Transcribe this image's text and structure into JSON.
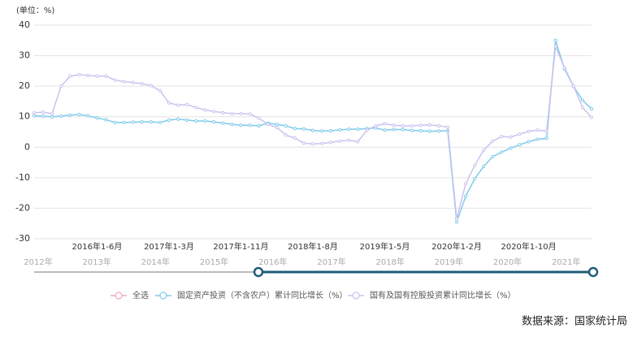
{
  "chart_data": {
    "type": "line",
    "y_label": "(单位：%)",
    "categories": [
      null,
      null,
      null,
      null,
      null,
      null,
      null,
      "2016年1-6月",
      null,
      null,
      null,
      null,
      null,
      null,
      null,
      "2017年1-3月",
      null,
      null,
      null,
      null,
      null,
      null,
      null,
      "2017年1-11月",
      null,
      null,
      null,
      null,
      null,
      null,
      null,
      "2018年1-8月",
      null,
      null,
      null,
      null,
      null,
      null,
      null,
      "2019年1-5月",
      null,
      null,
      null,
      null,
      null,
      null,
      null,
      "2020年1-2月",
      null,
      null,
      null,
      null,
      null,
      null,
      null,
      "2020年1-10月",
      null,
      null,
      null,
      null,
      null,
      null,
      null
    ],
    "series": [
      {
        "name": "固定资产投资（不含农户）累计同比增长（%）",
        "color": "#7ecbea",
        "values": [
          10.3,
          10.2,
          10.0,
          10.2,
          10.5,
          10.7,
          10.3,
          9.6,
          9.0,
          8.1,
          8.1,
          8.2,
          8.3,
          8.3,
          8.1,
          8.9,
          9.2,
          8.9,
          8.6,
          8.6,
          8.3,
          7.9,
          7.5,
          7.2,
          7.2,
          7.0,
          7.9,
          7.5,
          7.0,
          6.1,
          6.0,
          5.5,
          5.3,
          5.4,
          5.7,
          5.9,
          5.9,
          6.1,
          6.3,
          5.6,
          5.8,
          5.8,
          5.5,
          5.4,
          5.2,
          5.3,
          5.4,
          -24.5,
          -16.1,
          -10.3,
          -6.3,
          -3.1,
          -1.6,
          -0.3,
          0.8,
          1.8,
          2.6,
          2.9,
          35.0,
          25.6,
          19.9,
          15.4,
          12.6
        ]
      },
      {
        "name": "国有及国有控股投资累计同比增长（%）",
        "color": "#c9c3ee",
        "values": [
          11.3,
          11.5,
          11.0,
          20.0,
          23.3,
          23.8,
          23.5,
          23.3,
          23.3,
          22.0,
          21.5,
          21.2,
          20.8,
          20.2,
          18.5,
          14.5,
          13.8,
          14.0,
          13.0,
          12.2,
          11.7,
          11.3,
          11.0,
          11.0,
          10.9,
          9.5,
          7.5,
          6.5,
          4.0,
          3.0,
          1.3,
          1.1,
          1.2,
          1.6,
          2.0,
          2.3,
          1.8,
          5.5,
          7.0,
          7.7,
          7.2,
          7.0,
          7.0,
          7.2,
          7.3,
          7.0,
          6.6,
          -23.5,
          -12.0,
          -6.0,
          -1.0,
          2.0,
          3.5,
          3.3,
          4.3,
          5.2,
          5.6,
          5.3,
          33.0,
          26.0,
          20.0,
          13.0,
          9.8
        ]
      }
    ],
    "ylim": [
      -30,
      40
    ],
    "yticks": [
      -30,
      -20,
      -10,
      0,
      10,
      20,
      30,
      40
    ],
    "grid": true,
    "select_all_label": "全选",
    "select_all_color": "#f4a7b9",
    "timeline": [
      "2012年",
      "2013年",
      "2014年",
      "2015年",
      "2016年",
      "2017年",
      "2018年",
      "2019年",
      "2020年",
      "2021年"
    ],
    "source": "数据来源：国家统计局"
  }
}
